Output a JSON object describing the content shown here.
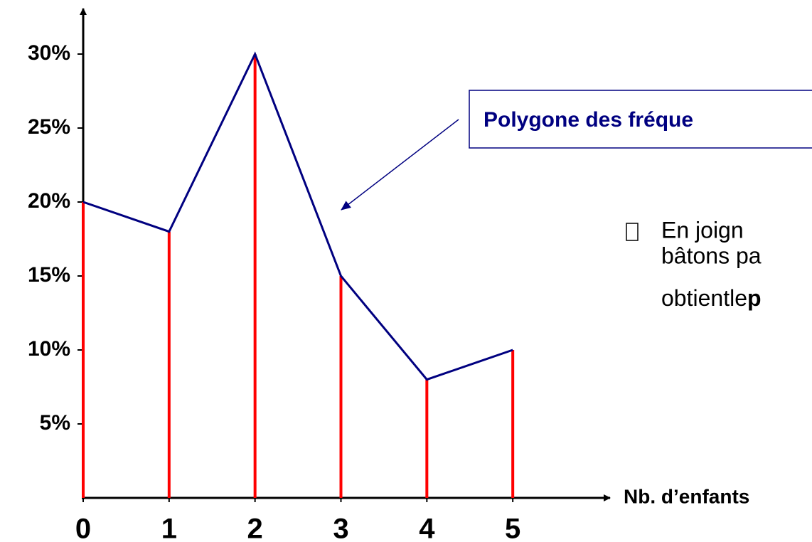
{
  "chart_data": {
    "type": "line",
    "x": [
      0,
      1,
      2,
      3,
      4,
      5
    ],
    "values": [
      20,
      18,
      30,
      15,
      8,
      10
    ],
    "bar_color": "#ff0000",
    "line_color": "#000080",
    "xlim": [
      0,
      6
    ],
    "ylim": [
      0,
      30
    ],
    "xticks": [
      0,
      1,
      2,
      3,
      4,
      5
    ],
    "yticks": [
      {
        "value": 5,
        "label": "5%"
      },
      {
        "value": 10,
        "label": "10%"
      },
      {
        "value": 15,
        "label": "15%"
      },
      {
        "value": 20,
        "label": "20%"
      },
      {
        "value": 25,
        "label": "25%"
      },
      {
        "value": 30,
        "label": "30%"
      }
    ],
    "xlabel": "Nb. d’enfants",
    "callout": "Polygone des fréque",
    "note_lines": [
      "En   joign",
      "bâtons pa",
      "obtientle"
    ],
    "note_bold": "p"
  }
}
